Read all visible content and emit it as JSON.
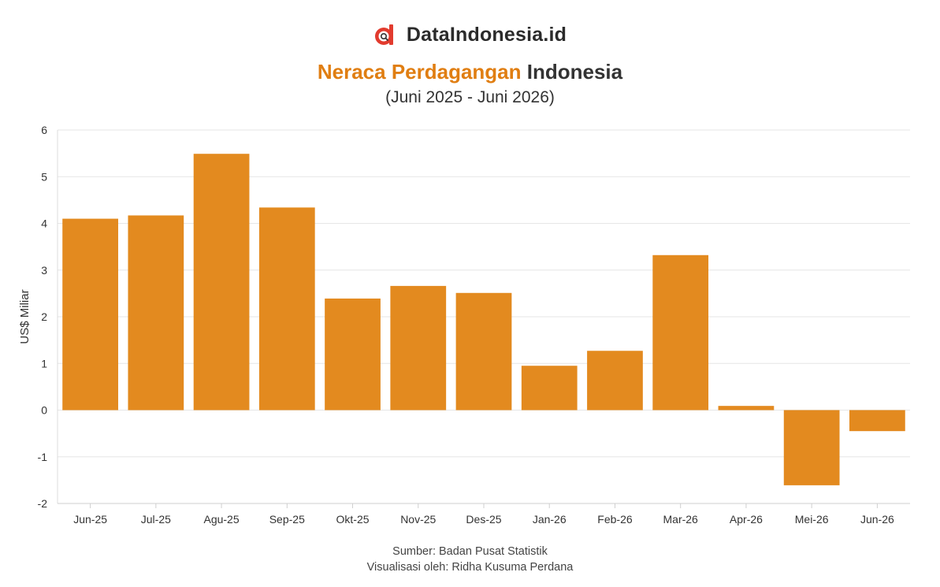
{
  "brand": {
    "name": "DataIndonesia.id",
    "logo_icon": "dataindonesia-logo-icon"
  },
  "colors": {
    "bar": "#e38a1f",
    "accent": "#e07e12",
    "grid": "#e6e6e6"
  },
  "chart_data": {
    "type": "bar",
    "title_accent": "Neraca Perdagangan",
    "title_rest": "Indonesia",
    "subtitle": "(Juni 2025 - Juni 2026)",
    "xlabel": "",
    "ylabel": "US$ Miliar",
    "ylim": [
      -2,
      6
    ],
    "yticks": [
      "6",
      "5",
      "4",
      "3",
      "2",
      "1",
      "0",
      "-1",
      "-2"
    ],
    "grid": true,
    "categories": [
      "Jun-25",
      "Jul-25",
      "Agu-25",
      "Sep-25",
      "Okt-25",
      "Nov-25",
      "Des-25",
      "Jan-26",
      "Feb-26",
      "Mar-26",
      "Apr-26",
      "Mei-26",
      "Jun-26"
    ],
    "values": [
      4.1,
      4.17,
      5.49,
      4.34,
      2.39,
      2.66,
      2.51,
      0.95,
      1.27,
      3.32,
      0.09,
      -1.61,
      -0.45
    ]
  },
  "footer": {
    "source": "Sumber: Badan Pusat Statistik",
    "credit": "Visualisasi oleh: Ridha Kusuma Perdana"
  }
}
